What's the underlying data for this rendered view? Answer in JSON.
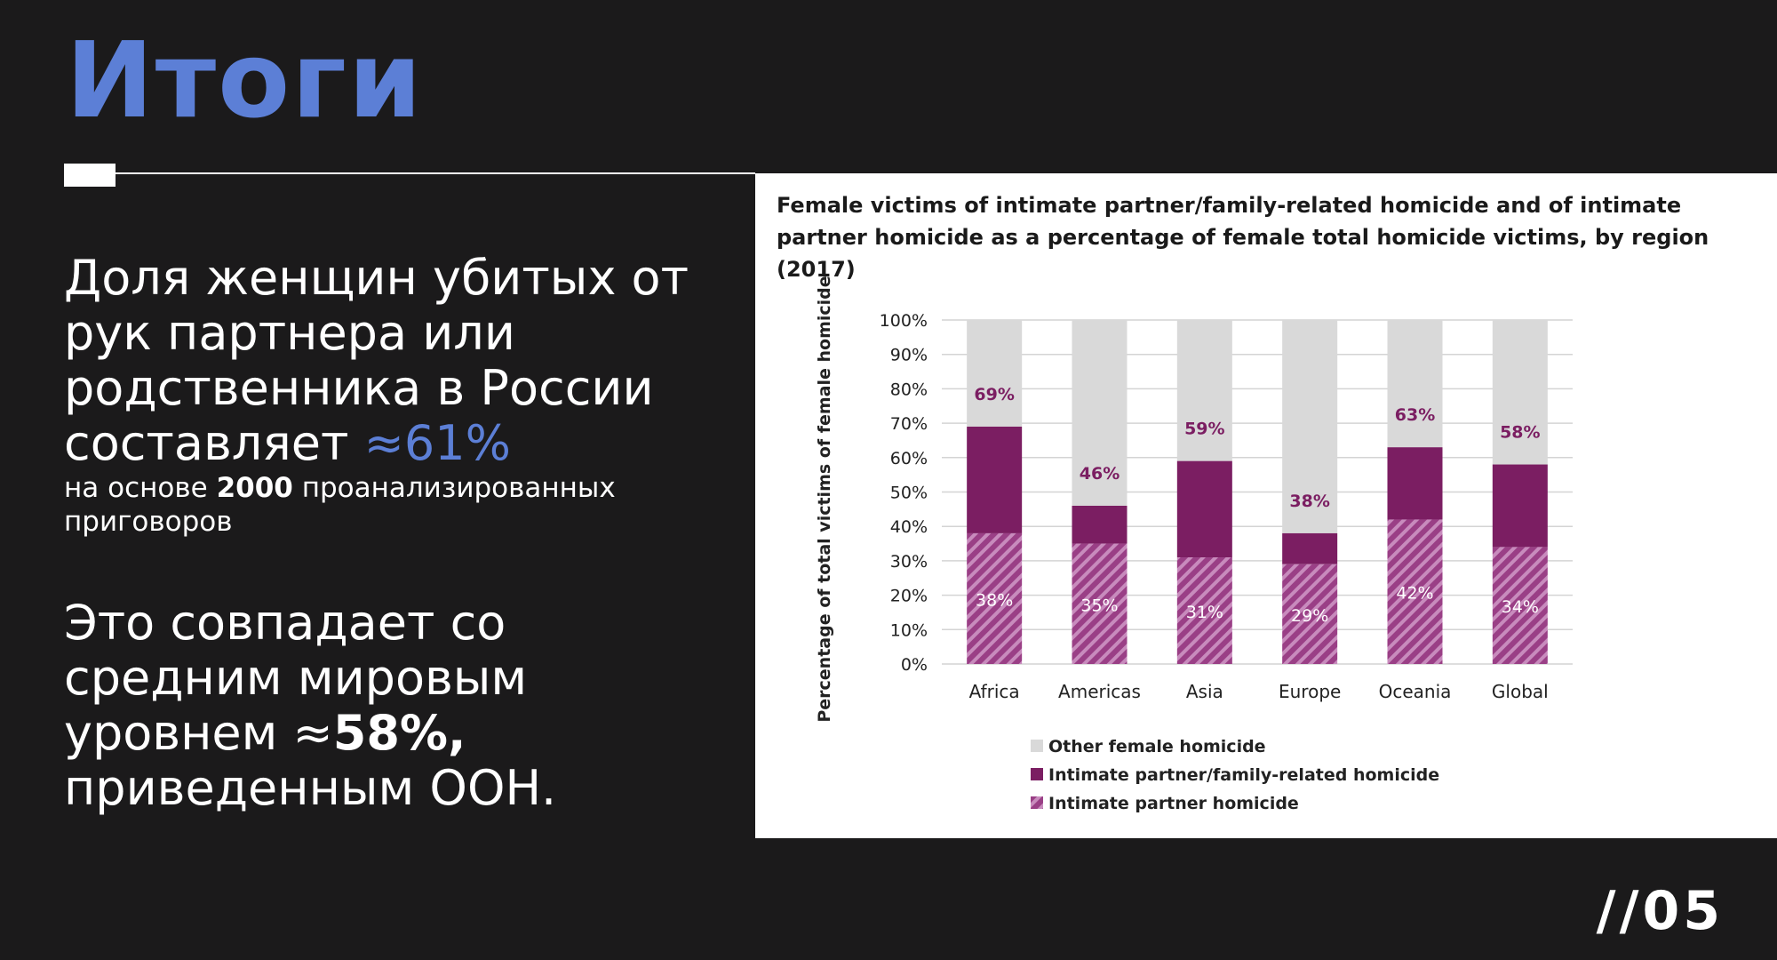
{
  "title": "Итоги",
  "block1": {
    "line1": "Доля женщин убитых от",
    "line2": "рук партнера или",
    "line3": "родственника в России",
    "line4_prefix": "составляет ",
    "line4_value": "≈61%",
    "sub_prefix": "на основе ",
    "sub_value": "2000",
    "sub_suffix": " проанализированных",
    "sub_line2": "приговоров"
  },
  "block2": {
    "line1": "Это совпадает со",
    "line2": "средним мировым",
    "line3_prefix": "уровнем ≈",
    "line3_value": "58%,",
    "line4": "приведенным ООН."
  },
  "page_number": "//05",
  "colors": {
    "background": "#1b1a1b",
    "accent": "#5c7fd6",
    "other": "#d9d9d9",
    "family": "#7b1e62",
    "partner": "#9a3f86"
  },
  "chart_data": {
    "type": "bar",
    "stacked": true,
    "title": "Female victims of intimate partner/family-related homicide and of intimate partner homicide as a percentage of female total homicide victims, by region (2017)",
    "ylabel": "Percentage of total victims of female homicide",
    "xlabel": "",
    "ylim": [
      0,
      100
    ],
    "yticks": [
      "0%",
      "10%",
      "20%",
      "30%",
      "40%",
      "50%",
      "60%",
      "70%",
      "80%",
      "90%",
      "100%"
    ],
    "categories": [
      "Africa",
      "Americas",
      "Asia",
      "Europe",
      "Oceania",
      "Global"
    ],
    "family_total": [
      69,
      46,
      59,
      38,
      63,
      58
    ],
    "partner": [
      38,
      35,
      31,
      29,
      42,
      34
    ],
    "family_labels": [
      "69%",
      "46%",
      "59%",
      "38%",
      "63%",
      "58%"
    ],
    "partner_labels": [
      "38%",
      "35%",
      "31%",
      "29%",
      "42%",
      "34%"
    ],
    "legend": [
      "Other female homicide",
      "Intimate partner/family-related homicide",
      "Intimate partner homicide"
    ],
    "legend_position": "bottom",
    "grid": true
  }
}
